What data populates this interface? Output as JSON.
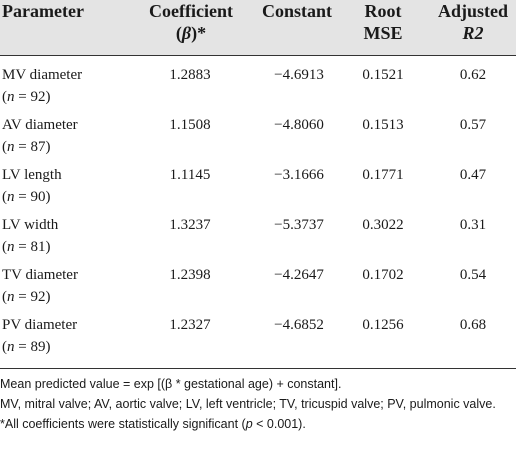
{
  "headers": {
    "parameter": "Parameter",
    "coefficient_line1": "Coefficient",
    "coefficient_line2_sym": "β",
    "coefficient_line2_suffix": "*",
    "constant": "Constant",
    "root_mse_line1": "Root",
    "root_mse_line2": "MSE",
    "adjusted_line1": "Adjusted",
    "adjusted_line2": "R2"
  },
  "rows": [
    {
      "parameter": "MV diameter",
      "n": "92",
      "coefficient": "1.2883",
      "constant": "−4.6913",
      "root_mse": "0.1521",
      "adjusted_r2": "0.62"
    },
    {
      "parameter": "AV diameter",
      "n": "87",
      "coefficient": "1.1508",
      "constant": "−4.8060",
      "root_mse": "0.1513",
      "adjusted_r2": "0.57"
    },
    {
      "parameter": "LV length",
      "n": "90",
      "coefficient": "1.1145",
      "constant": "−3.1666",
      "root_mse": "0.1771",
      "adjusted_r2": "0.47"
    },
    {
      "parameter": "LV width",
      "n": "81",
      "coefficient": "1.3237",
      "constant": "−5.3737",
      "root_mse": "0.3022",
      "adjusted_r2": "0.31"
    },
    {
      "parameter": "TV diameter",
      "n": "92",
      "coefficient": "1.2398",
      "constant": "−4.2647",
      "root_mse": "0.1702",
      "adjusted_r2": "0.54"
    },
    {
      "parameter": "PV diameter",
      "n": "89",
      "coefficient": "1.2327",
      "constant": "−4.6852",
      "root_mse": "0.1256",
      "adjusted_r2": "0.68"
    }
  ],
  "n_symbol": "n",
  "footnotes": {
    "formula": "Mean predicted value = exp [(β * gestational age) + constant].",
    "abbreviations": "MV, mitral valve; AV, aortic valve; LV, left ventricle; TV, tricuspid valve; PV, pulmonic valve.",
    "significance_prefix": "*All coefficients were statistically significant (",
    "significance_p": "p",
    "significance_suffix": " < 0.001)."
  }
}
